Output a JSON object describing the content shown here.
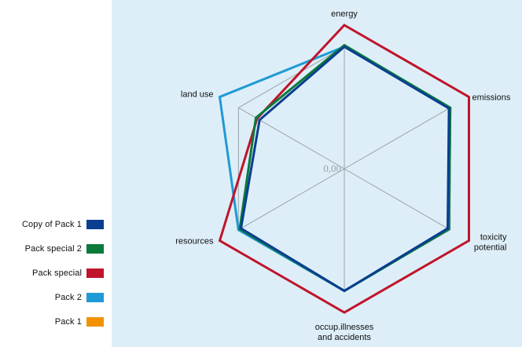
{
  "chart_data": {
    "type": "radar",
    "axes": [
      "energy",
      "emissions",
      "toxicity\npotential",
      "occup.illnesses\nand accidents",
      "resources",
      "land use"
    ],
    "center_label": "0,00",
    "series": [
      {
        "name": "Copy of Pack 1",
        "color": "#0b3d91",
        "values": [
          0.85,
          0.84,
          0.83,
          0.85,
          0.83,
          0.68
        ]
      },
      {
        "name": "Pack special 2",
        "color": "#0a7a3a",
        "values": [
          0.86,
          0.85,
          0.84,
          0.85,
          0.84,
          0.71
        ]
      },
      {
        "name": "Pack special",
        "color": "#c0142a",
        "values": [
          1.0,
          1.0,
          1.0,
          1.0,
          1.0,
          0.7
        ]
      },
      {
        "name": "Pack 2",
        "color": "#1e9ad6",
        "values": [
          0.85,
          0.85,
          0.84,
          0.85,
          0.85,
          1.0
        ]
      },
      {
        "name": "Pack 1",
        "color": "#f39200",
        "values": [
          null,
          null,
          null,
          null,
          null,
          null
        ]
      }
    ],
    "legend_position": "left"
  }
}
